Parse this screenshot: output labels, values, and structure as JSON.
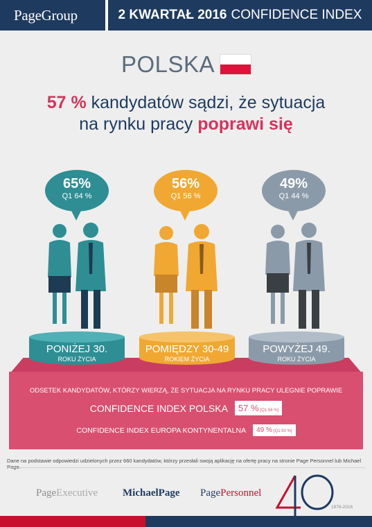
{
  "header": {
    "logo": "PageGroup",
    "title_bold": "2 KWARTAŁ 2016",
    "title_light": "CONFIDENCE INDEX"
  },
  "country": {
    "name": "POLSKA",
    "flag": "poland-flag"
  },
  "headline": {
    "pct": "57 %",
    "text1": " kandydatów sądzi, że sytuacja",
    "text2": "na rynku pracy ",
    "accent": "poprawi się"
  },
  "groups": [
    {
      "pct": "65%",
      "q1": "Q1 64 %",
      "label": "PONIŻEJ 30.",
      "sub": "ROKU ŻYCIA",
      "color": "#2e8e94"
    },
    {
      "pct": "56%",
      "q1": "Q1 56 %",
      "label": "POMIĘDZY 30-49",
      "sub": "ROKIEM ŻYCIA",
      "color": "#f0a832"
    },
    {
      "pct": "49%",
      "q1": "Q1 44 %",
      "label": "POWYŻEJ 49.",
      "sub": "ROKU ŻYCIA",
      "color": "#8b9aa8"
    }
  ],
  "stage": {
    "description": "ODSETEK KANDYDATÓW, KTÓRZY WIERZĄ, ŻE SYTUACJA NA RYNKU PRACY ULEGNIE POPRAWIE",
    "ci_pl": {
      "label": "CONFIDENCE INDEX POLSKA",
      "value": "57 %",
      "q1": "[Q1 56 %]"
    },
    "ci_eu": {
      "label": "CONFIDENCE INDEX EUROPA KONTYNENTALNA",
      "value": "49 %",
      "q1": "[Q1 50 %]"
    }
  },
  "footnote": "Dane na podstawie odpowiedzi udzielonych przez 660 kandydatów, którzy przesłali swoją aplikację na ofertę pracy na stronie Page Personnel lub Michael Page.",
  "brands": {
    "pe_a": "Page",
    "pe_b": "Executive",
    "mp": "MichaelPage",
    "pp_a": "Page",
    "pp_b": "Personnel"
  },
  "years": "1976-2016",
  "colors": {
    "navy": "#1e3a5f",
    "pink": "#d94f70",
    "red": "#c8102e"
  }
}
